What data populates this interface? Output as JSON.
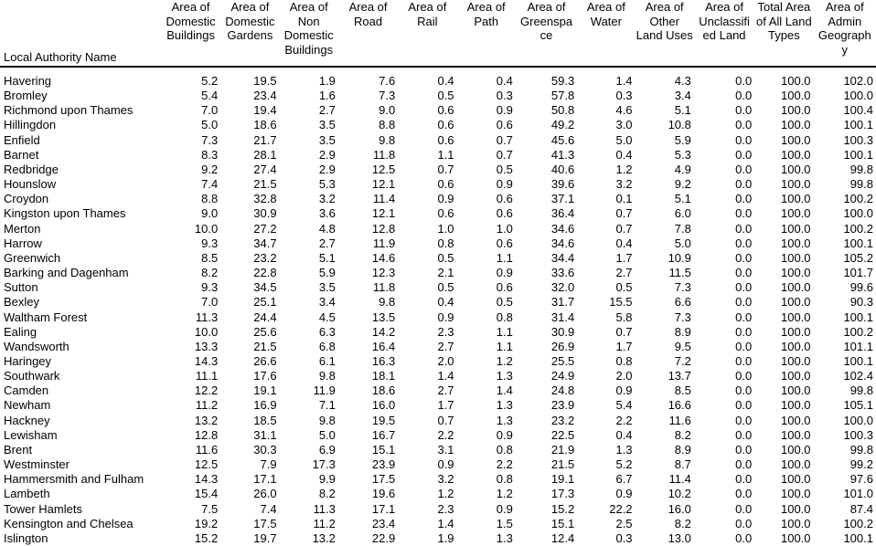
{
  "table": {
    "headers": [
      "Local Authority Name",
      "Area of Domestic Buildings",
      "Area of Domestic Gardens",
      "Area of Non Domestic Buildings",
      "Area of Road",
      "Area of Rail",
      "Area of Path",
      "Area of Greenspa ce",
      "Area of Water",
      "Area of Other Land Uses",
      "Area of Unclassifi ed Land",
      "Total Area of All Land Types",
      "Area of Admin Geograph y"
    ],
    "rows": [
      [
        "Havering",
        "5.2",
        "19.5",
        "1.9",
        "7.6",
        "0.4",
        "0.4",
        "59.3",
        "1.4",
        "4.3",
        "0.0",
        "100.0",
        "102.0"
      ],
      [
        "Bromley",
        "5.4",
        "23.4",
        "1.6",
        "7.3",
        "0.5",
        "0.3",
        "57.8",
        "0.3",
        "3.4",
        "0.0",
        "100.0",
        "100.0"
      ],
      [
        "Richmond upon Thames",
        "7.0",
        "19.4",
        "2.7",
        "9.0",
        "0.6",
        "0.9",
        "50.8",
        "4.6",
        "5.1",
        "0.0",
        "100.0",
        "100.4"
      ],
      [
        "Hillingdon",
        "5.0",
        "18.6",
        "3.5",
        "8.8",
        "0.6",
        "0.6",
        "49.2",
        "3.0",
        "10.8",
        "0.0",
        "100.0",
        "100.1"
      ],
      [
        "Enfield",
        "7.3",
        "21.7",
        "3.5",
        "9.8",
        "0.6",
        "0.7",
        "45.6",
        "5.0",
        "5.9",
        "0.0",
        "100.0",
        "100.3"
      ],
      [
        "Barnet",
        "8.3",
        "28.1",
        "2.9",
        "11.8",
        "1.1",
        "0.7",
        "41.3",
        "0.4",
        "5.3",
        "0.0",
        "100.0",
        "100.1"
      ],
      [
        "Redbridge",
        "9.2",
        "27.4",
        "2.9",
        "12.5",
        "0.7",
        "0.5",
        "40.6",
        "1.2",
        "4.9",
        "0.0",
        "100.0",
        "99.8"
      ],
      [
        "Hounslow",
        "7.4",
        "21.5",
        "5.3",
        "12.1",
        "0.6",
        "0.9",
        "39.6",
        "3.2",
        "9.2",
        "0.0",
        "100.0",
        "99.8"
      ],
      [
        "Croydon",
        "8.8",
        "32.8",
        "3.2",
        "11.4",
        "0.9",
        "0.6",
        "37.1",
        "0.1",
        "5.1",
        "0.0",
        "100.0",
        "100.2"
      ],
      [
        "Kingston upon Thames",
        "9.0",
        "30.9",
        "3.6",
        "12.1",
        "0.6",
        "0.6",
        "36.4",
        "0.7",
        "6.0",
        "0.0",
        "100.0",
        "100.0"
      ],
      [
        "Merton",
        "10.0",
        "27.2",
        "4.8",
        "12.8",
        "1.0",
        "1.0",
        "34.6",
        "0.7",
        "7.8",
        "0.0",
        "100.0",
        "100.2"
      ],
      [
        "Harrow",
        "9.3",
        "34.7",
        "2.7",
        "11.9",
        "0.8",
        "0.6",
        "34.6",
        "0.4",
        "5.0",
        "0.0",
        "100.0",
        "100.1"
      ],
      [
        "Greenwich",
        "8.5",
        "23.2",
        "5.1",
        "14.6",
        "0.5",
        "1.1",
        "34.4",
        "1.7",
        "10.9",
        "0.0",
        "100.0",
        "105.2"
      ],
      [
        "Barking and Dagenham",
        "8.2",
        "22.8",
        "5.9",
        "12.3",
        "2.1",
        "0.9",
        "33.6",
        "2.7",
        "11.5",
        "0.0",
        "100.0",
        "101.7"
      ],
      [
        "Sutton",
        "9.3",
        "34.5",
        "3.5",
        "11.8",
        "0.5",
        "0.6",
        "32.0",
        "0.5",
        "7.3",
        "0.0",
        "100.0",
        "99.6"
      ],
      [
        "Bexley",
        "7.0",
        "25.1",
        "3.4",
        "9.8",
        "0.4",
        "0.5",
        "31.7",
        "15.5",
        "6.6",
        "0.0",
        "100.0",
        "90.3"
      ],
      [
        "Waltham Forest",
        "11.3",
        "24.4",
        "4.5",
        "13.5",
        "0.9",
        "0.8",
        "31.4",
        "5.8",
        "7.3",
        "0.0",
        "100.0",
        "100.1"
      ],
      [
        "Ealing",
        "10.0",
        "25.6",
        "6.3",
        "14.2",
        "2.3",
        "1.1",
        "30.9",
        "0.7",
        "8.9",
        "0.0",
        "100.0",
        "100.2"
      ],
      [
        "Wandsworth",
        "13.3",
        "21.5",
        "6.8",
        "16.4",
        "2.7",
        "1.1",
        "26.9",
        "1.7",
        "9.5",
        "0.0",
        "100.0",
        "101.1"
      ],
      [
        "Haringey",
        "14.3",
        "26.6",
        "6.1",
        "16.3",
        "2.0",
        "1.2",
        "25.5",
        "0.8",
        "7.2",
        "0.0",
        "100.0",
        "100.1"
      ],
      [
        "Southwark",
        "11.1",
        "17.6",
        "9.8",
        "18.1",
        "1.4",
        "1.3",
        "24.9",
        "2.0",
        "13.7",
        "0.0",
        "100.0",
        "102.4"
      ],
      [
        "Camden",
        "12.2",
        "19.1",
        "11.9",
        "18.6",
        "2.7",
        "1.4",
        "24.8",
        "0.9",
        "8.5",
        "0.0",
        "100.0",
        "99.8"
      ],
      [
        "Newham",
        "11.2",
        "16.9",
        "7.1",
        "16.0",
        "1.7",
        "1.3",
        "23.9",
        "5.4",
        "16.6",
        "0.0",
        "100.0",
        "105.1"
      ],
      [
        "Hackney",
        "13.2",
        "18.5",
        "9.8",
        "19.5",
        "0.7",
        "1.3",
        "23.2",
        "2.2",
        "11.6",
        "0.0",
        "100.0",
        "100.0"
      ],
      [
        "Lewisham",
        "12.8",
        "31.1",
        "5.0",
        "16.7",
        "2.2",
        "0.9",
        "22.5",
        "0.4",
        "8.2",
        "0.0",
        "100.0",
        "100.3"
      ],
      [
        "Brent",
        "11.6",
        "30.3",
        "6.9",
        "15.1",
        "3.1",
        "0.8",
        "21.9",
        "1.3",
        "8.9",
        "0.0",
        "100.0",
        "99.8"
      ],
      [
        "Westminster",
        "12.5",
        "7.9",
        "17.3",
        "23.9",
        "0.9",
        "2.2",
        "21.5",
        "5.2",
        "8.7",
        "0.0",
        "100.0",
        "99.2"
      ],
      [
        "Hammersmith and Fulham",
        "14.3",
        "17.1",
        "9.9",
        "17.5",
        "3.2",
        "0.8",
        "19.1",
        "6.7",
        "11.4",
        "0.0",
        "100.0",
        "97.6"
      ],
      [
        "Lambeth",
        "15.4",
        "26.0",
        "8.2",
        "19.6",
        "1.2",
        "1.2",
        "17.3",
        "0.9",
        "10.2",
        "0.0",
        "100.0",
        "101.0"
      ],
      [
        "Tower Hamlets",
        "7.5",
        "7.4",
        "11.3",
        "17.1",
        "2.3",
        "0.9",
        "15.2",
        "22.2",
        "16.0",
        "0.0",
        "100.0",
        "87.4"
      ],
      [
        "Kensington and Chelsea",
        "19.2",
        "17.5",
        "11.2",
        "23.4",
        "1.4",
        "1.5",
        "15.1",
        "2.5",
        "8.2",
        "0.0",
        "100.0",
        "100.2"
      ],
      [
        "Islington",
        "15.2",
        "19.7",
        "13.2",
        "22.9",
        "1.9",
        "1.3",
        "12.4",
        "0.3",
        "13.0",
        "0.0",
        "100.0",
        "100.1"
      ]
    ]
  }
}
